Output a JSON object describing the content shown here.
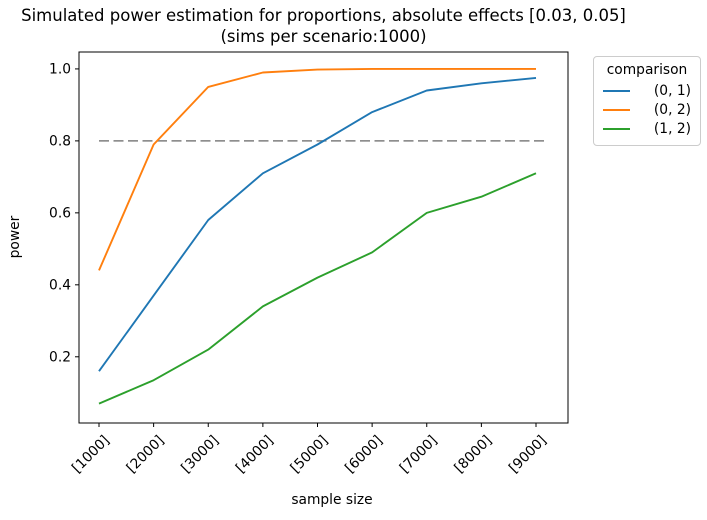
{
  "chart_data": {
    "type": "line",
    "title": "Simulated power estimation for proportions, absolute effects [0.03, 0.05]",
    "subtitle": "(sims per scenario:1000)",
    "xlabel": "sample size",
    "ylabel": "power",
    "categories": [
      "[1000]",
      "[2000]",
      "[3000]",
      "[4000]",
      "[5000]",
      "[6000]",
      "[7000]",
      "[8000]",
      "[9000]"
    ],
    "y_ticks": [
      0.2,
      0.4,
      0.6,
      0.8,
      1.0
    ],
    "ylim": [
      0.016,
      1.047
    ],
    "grid": false,
    "legend": {
      "title": "comparison",
      "position": "outside upper right"
    },
    "reference_line": {
      "y": 0.8,
      "style": "dashed",
      "color": "#7f7f7f"
    },
    "series": [
      {
        "name": "(0, 1)",
        "color": "#1f77b4",
        "values": [
          0.16,
          0.37,
          0.58,
          0.71,
          0.79,
          0.88,
          0.94,
          0.96,
          0.975
        ]
      },
      {
        "name": "(0, 2)",
        "color": "#ff7f0e",
        "values": [
          0.44,
          0.79,
          0.95,
          0.99,
          0.998,
          1.0,
          1.0,
          1.0,
          1.0
        ]
      },
      {
        "name": "(1, 2)",
        "color": "#2ca02c",
        "values": [
          0.07,
          0.135,
          0.22,
          0.34,
          0.42,
          0.49,
          0.6,
          0.645,
          0.71
        ]
      }
    ]
  }
}
